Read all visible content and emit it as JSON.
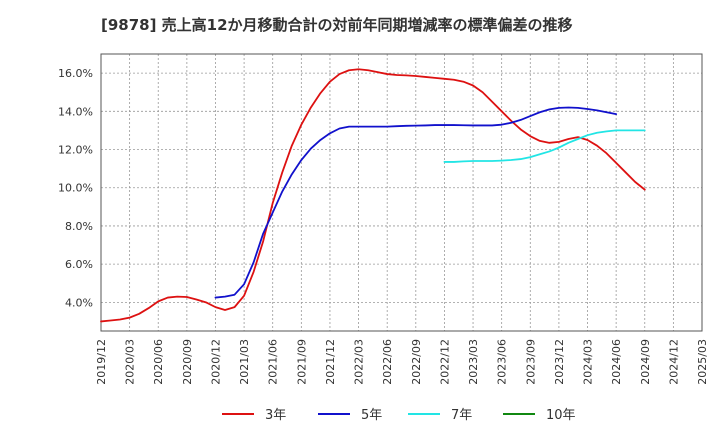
{
  "chart_data": {
    "type": "line",
    "title": "[9878]  売上高12か月移動合計の対前年同期増減率の標準偏差の推移",
    "xlabel": "",
    "ylabel": "",
    "ylim": [
      2.5,
      17.0
    ],
    "y_ticks": [
      4.0,
      6.0,
      8.0,
      10.0,
      12.0,
      14.0,
      16.0
    ],
    "y_tick_labels": [
      "4.0%",
      "6.0%",
      "8.0%",
      "10.0%",
      "12.0%",
      "14.0%",
      "16.0%"
    ],
    "x_tick_labels": [
      "2019/12",
      "2020/03",
      "2020/06",
      "2020/09",
      "2020/12",
      "2021/03",
      "2021/06",
      "2021/09",
      "2021/12",
      "2022/03",
      "2022/06",
      "2022/09",
      "2022/12",
      "2023/03",
      "2023/06",
      "2023/09",
      "2023/12",
      "2024/03",
      "2024/06",
      "2024/09",
      "2024/12",
      "2025/03"
    ],
    "grid": true,
    "legend_position": "bottom",
    "series": [
      {
        "name": "3年",
        "color": "#dd1111",
        "start_index": 0,
        "values": [
          3.0,
          3.05,
          3.1,
          3.2,
          3.4,
          3.7,
          4.05,
          4.25,
          4.3,
          4.28,
          4.15,
          4.0,
          3.75,
          3.6,
          3.75,
          4.35,
          5.6,
          7.2,
          9.2,
          10.8,
          12.2,
          13.3,
          14.2,
          14.95,
          15.55,
          15.95,
          16.15,
          16.2,
          16.15,
          16.05,
          15.95,
          15.9,
          15.88,
          15.85,
          15.8,
          15.75,
          15.7,
          15.65,
          15.55,
          15.35,
          15.0,
          14.5,
          14.0,
          13.5,
          13.05,
          12.7,
          12.45,
          12.35,
          12.4,
          12.55,
          12.65,
          12.5,
          12.2,
          11.8,
          11.3,
          10.8,
          10.3,
          9.9
        ]
      },
      {
        "name": "5年",
        "color": "#1111cc",
        "start_index": 12,
        "values": [
          4.25,
          4.3,
          4.4,
          4.95,
          6.1,
          7.6,
          8.7,
          9.8,
          10.7,
          11.45,
          12.05,
          12.5,
          12.85,
          13.1,
          13.2,
          13.2,
          13.2,
          13.2,
          13.2,
          13.22,
          13.24,
          13.25,
          13.26,
          13.28,
          13.28,
          13.28,
          13.27,
          13.26,
          13.26,
          13.26,
          13.3,
          13.4,
          13.55,
          13.75,
          13.95,
          14.1,
          14.18,
          14.2,
          14.18,
          14.12,
          14.05,
          13.95,
          13.85
        ]
      },
      {
        "name": "7年",
        "color": "#22e5e5",
        "start_index": 36,
        "values": [
          11.35,
          11.35,
          11.38,
          11.4,
          11.4,
          11.4,
          11.42,
          11.45,
          11.5,
          11.6,
          11.75,
          11.9,
          12.1,
          12.35,
          12.55,
          12.75,
          12.88,
          12.95,
          13.0,
          13.0,
          13.0,
          13.0
        ]
      },
      {
        "name": "10年",
        "color": "#118811",
        "start_index": 0,
        "values": []
      }
    ]
  }
}
